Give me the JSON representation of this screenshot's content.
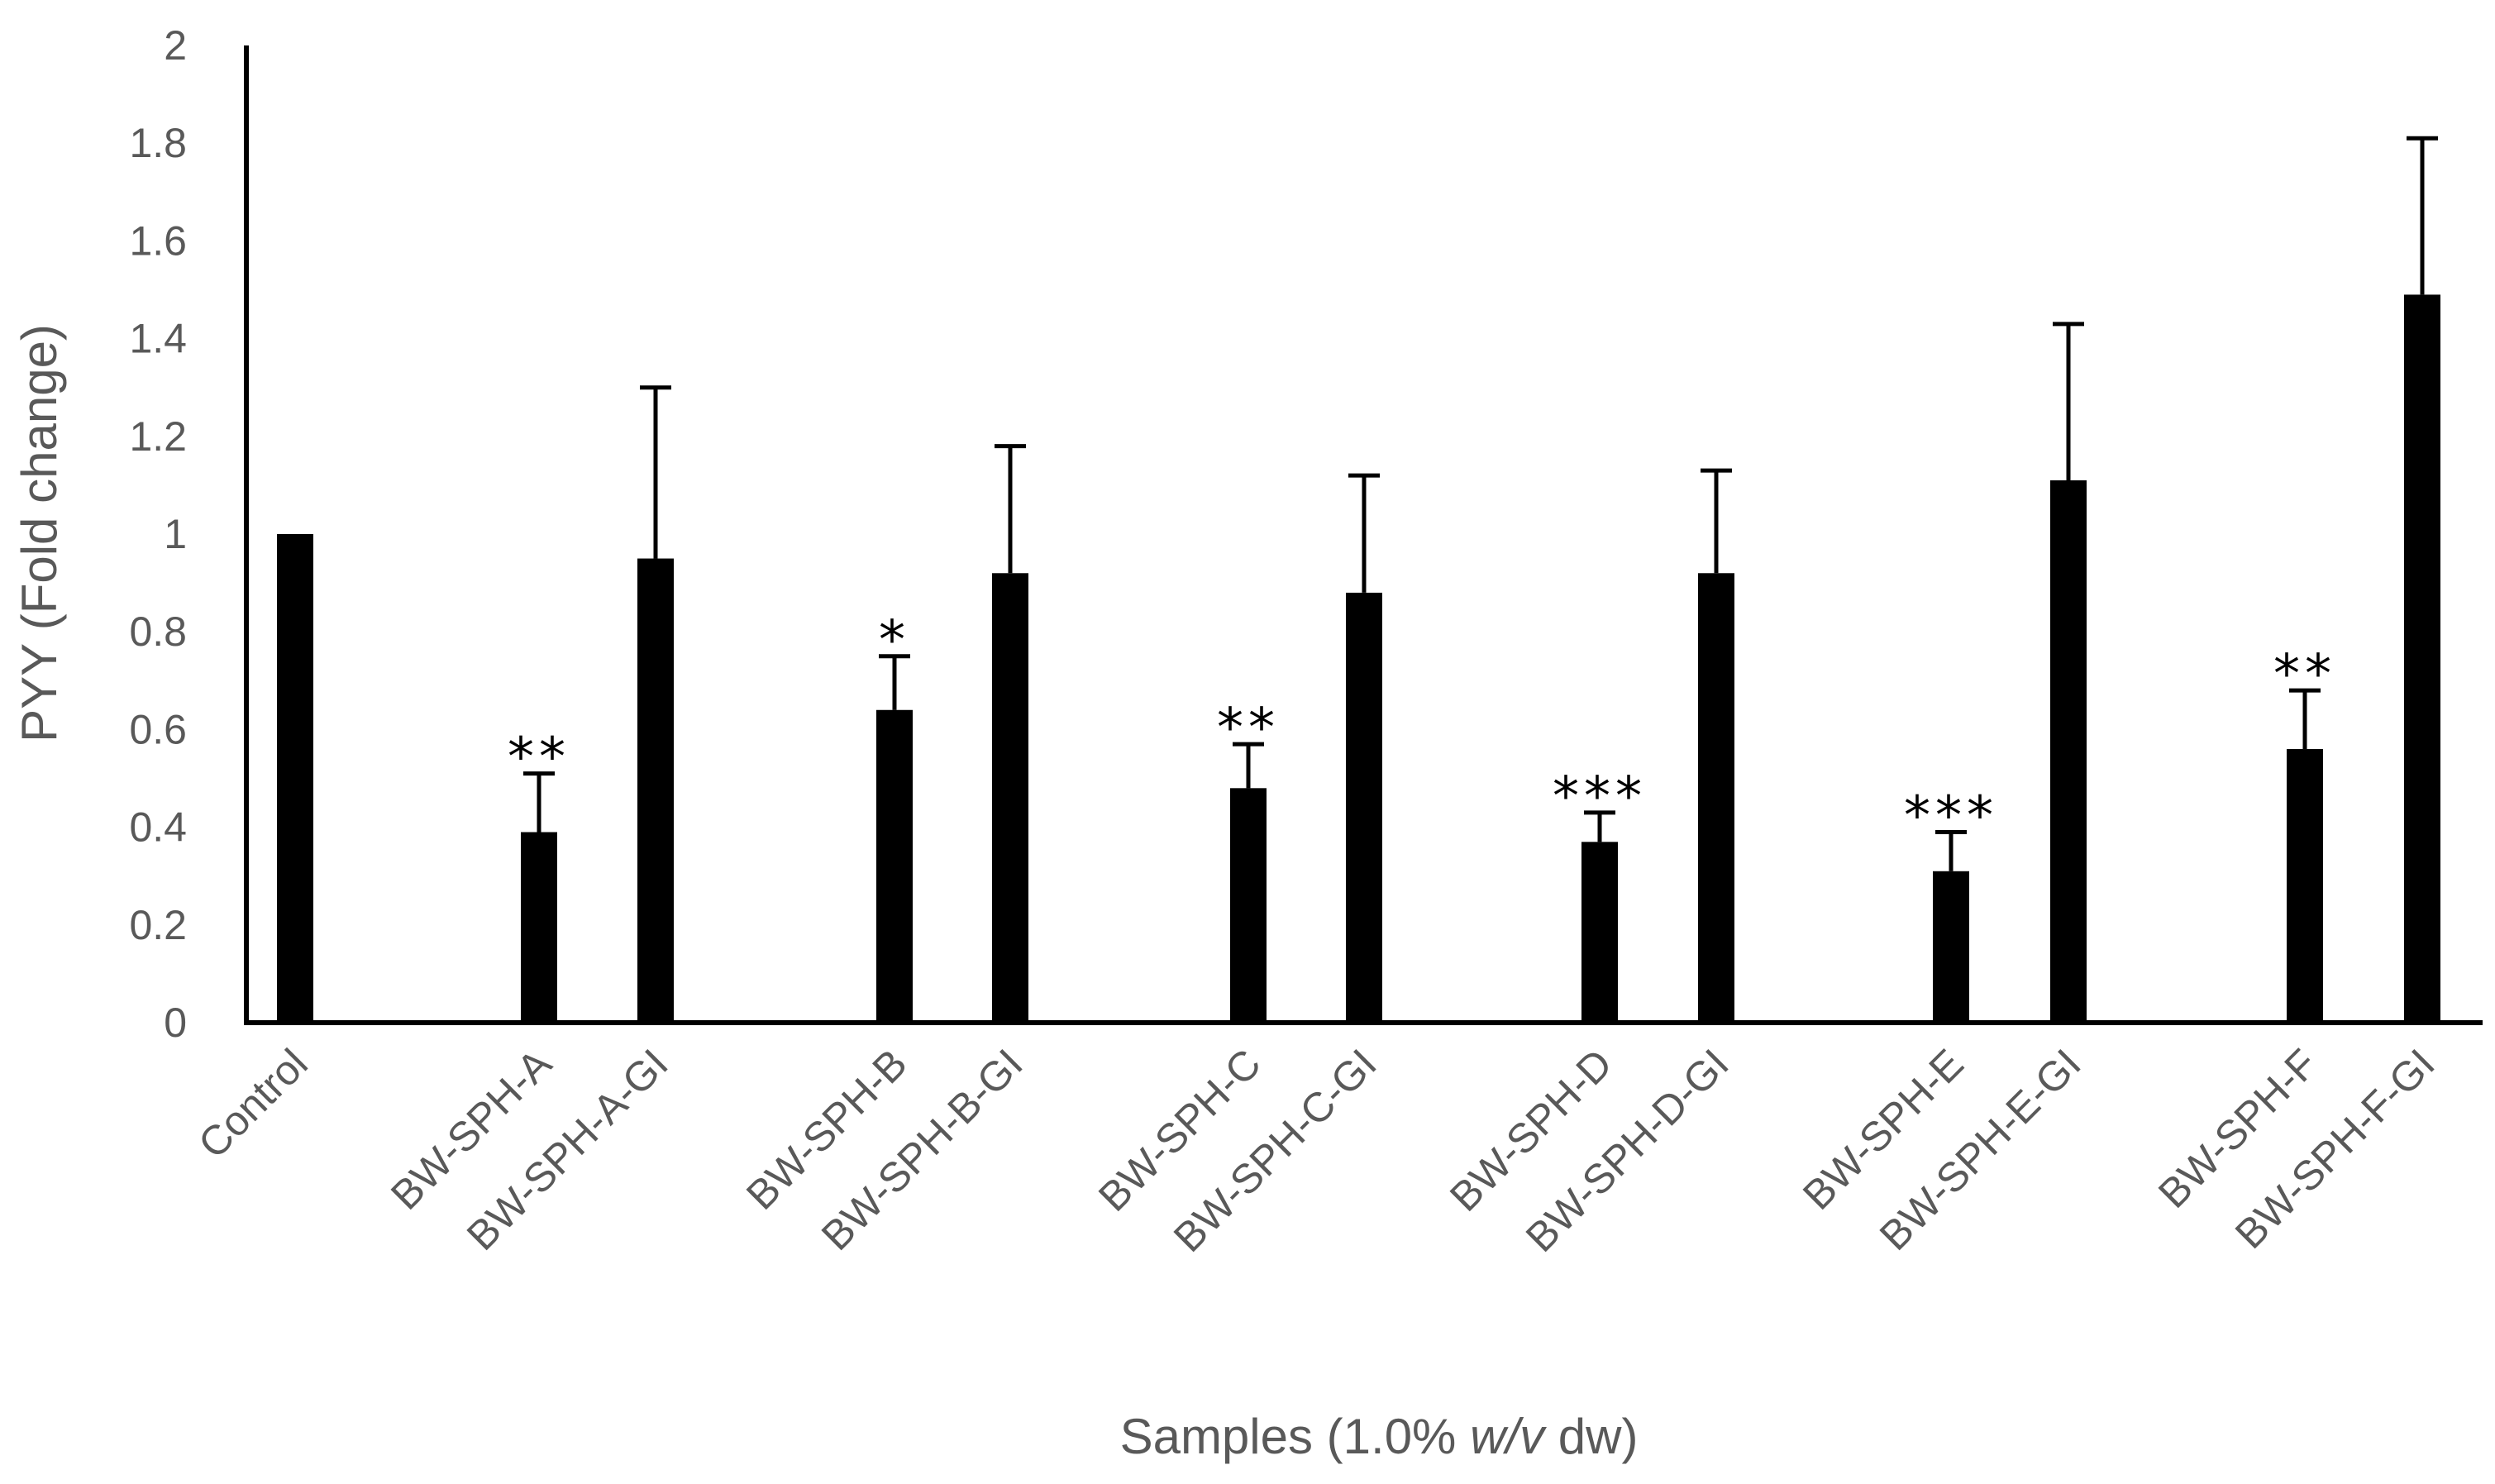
{
  "chart_data": {
    "type": "bar",
    "categories": [
      "Control",
      "BW-SPH-A",
      "BW-SPH-A-GI",
      "BW-SPH-B",
      "BW-SPH-B-GI",
      "BW-SPH-C",
      "BW-SPH-C-GI",
      "BW-SPH-D",
      "BW-SPH-D-GI",
      "BW-SPH-E",
      "BW-SPH-E-GI",
      "BW-SPH-F",
      "BW-SPH-F-GI"
    ],
    "values": [
      1.0,
      0.39,
      0.95,
      0.64,
      0.92,
      0.48,
      0.88,
      0.37,
      0.92,
      0.31,
      1.11,
      0.56,
      1.49
    ],
    "error_upper": [
      0.0,
      0.12,
      0.35,
      0.11,
      0.26,
      0.09,
      0.24,
      0.06,
      0.21,
      0.08,
      0.32,
      0.12,
      0.32
    ],
    "significance": [
      "",
      "**",
      "",
      "*",
      "",
      "**",
      "",
      "***",
      "",
      "***",
      "",
      "**",
      ""
    ],
    "title": "",
    "ylabel": "PYY (Fold change)",
    "xlabel_prefix": "Samples (1.0% ",
    "xlabel_italic": "w/v",
    "xlabel_suffix": " dw)",
    "ylim": [
      0,
      2
    ],
    "yticks": [
      "0",
      "0.2",
      "0.4",
      "0.6",
      "0.8",
      "1",
      "1.2",
      "1.4",
      "1.6",
      "1.8",
      "2"
    ],
    "bar_color": "#000000",
    "grid": false,
    "legend": "none"
  }
}
